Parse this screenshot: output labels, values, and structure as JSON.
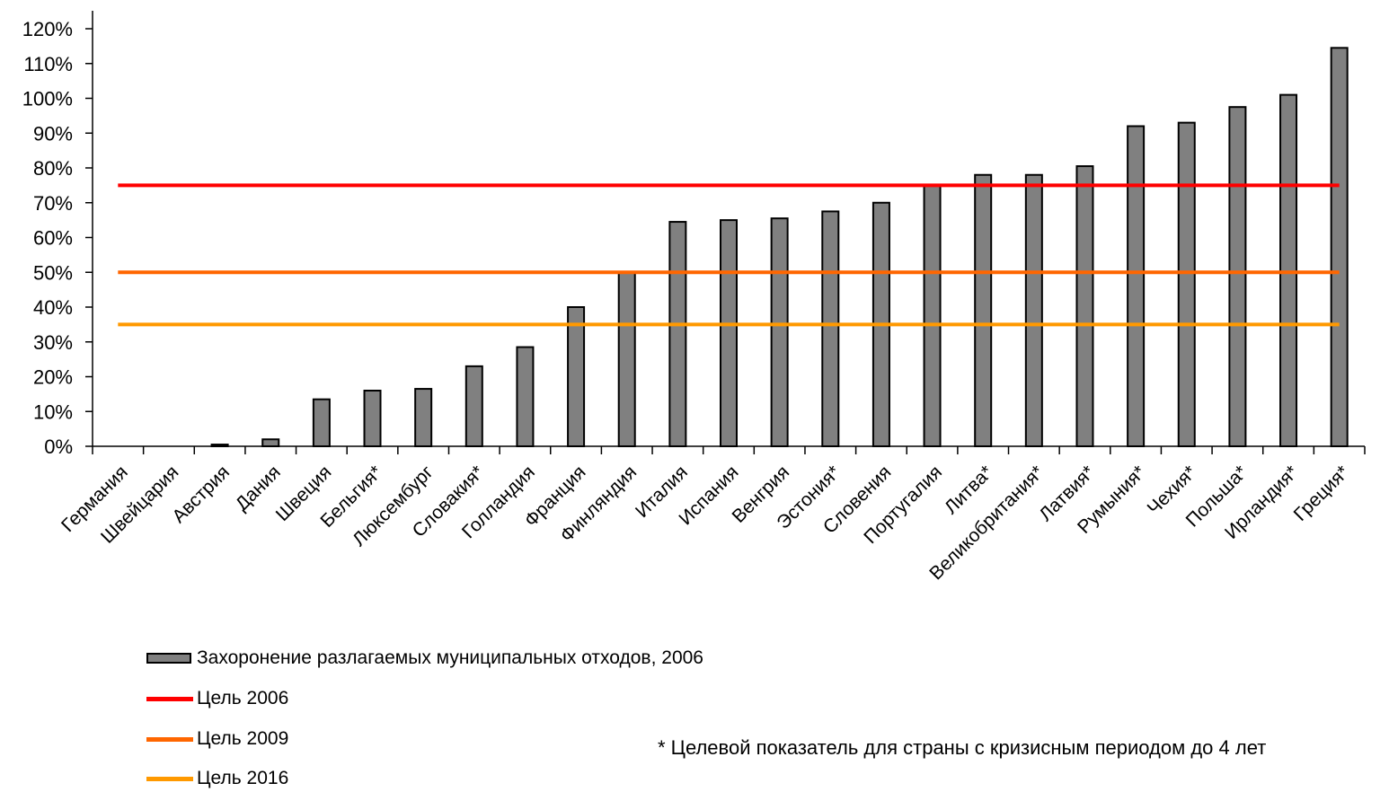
{
  "chart_data": {
    "type": "bar",
    "categories": [
      "Германия",
      "Швейцария",
      "Австрия",
      "Дания",
      "Швеция",
      "Бельгия*",
      "Люксембург",
      "Словакия*",
      "Голландия",
      "Франция",
      "Финляндия",
      "Италия",
      "Испания",
      "Венгрия",
      "Эстония*",
      "Словения",
      "Португалия",
      "Литва*",
      "Великобритания*",
      "Латвия*",
      "Румыния*",
      "Чехия*",
      "Польша*",
      "Ирландия*",
      "Греция*"
    ],
    "series": [
      {
        "name": "Захоронение разлагаемых муниципальных отходов, 2006",
        "color": "#808080",
        "values": [
          0,
          0,
          0.5,
          2,
          13.5,
          16,
          16.5,
          23,
          28.5,
          40,
          50,
          64.5,
          65,
          65.5,
          67.5,
          70,
          75,
          78,
          78,
          80.5,
          92,
          93,
          97.5,
          101,
          114.5
        ]
      }
    ],
    "target_lines": [
      {
        "name": "Цель 2006",
        "value": 75,
        "color": "#ff0000"
      },
      {
        "name": "Цель 2009",
        "value": 50,
        "color": "#ff6600"
      },
      {
        "name": "Цель 2016",
        "value": 35,
        "color": "#ff9900"
      }
    ],
    "yticks": [
      "0%",
      "10%",
      "20%",
      "30%",
      "40%",
      "50%",
      "60%",
      "70%",
      "80%",
      "90%",
      "100%",
      "110%",
      "120%"
    ],
    "ylim": [
      0,
      120
    ],
    "grid": false,
    "legend_position": "bottom-left",
    "footnote": "* Целевой показатель для страны с кризисным периодом до 4 лет"
  }
}
